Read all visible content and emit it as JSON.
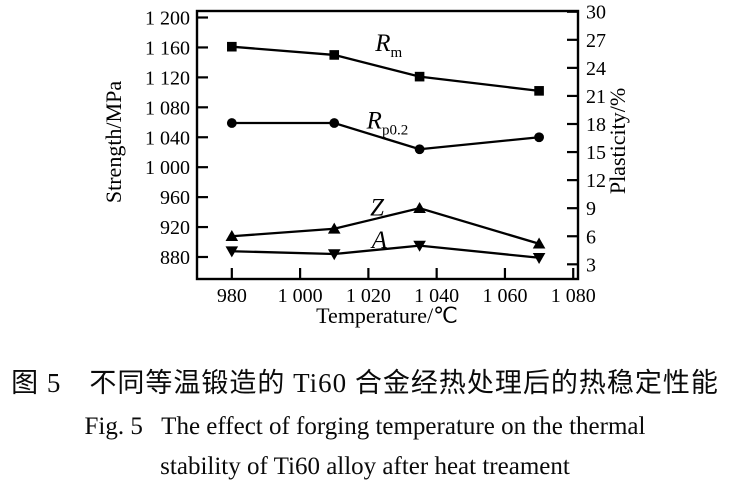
{
  "figure": {
    "caption_zh": "图 5　不同等温锻造的 Ti60 合金经热处理后的热稳定性能",
    "caption_en_line1": "Fig. 5   The effect of forging temperature on the thermal",
    "caption_en_line2": "stability of Ti60 alloy after heat treament"
  },
  "chart_data": {
    "type": "line",
    "title": "",
    "xlabel": "Temperature/℃",
    "ylabel_left": "Strength/MPa",
    "ylabel_right": "Plasticity/%",
    "x": [
      980,
      1010,
      1035,
      1070
    ],
    "series": [
      {
        "name": "Rm",
        "label_main": "R",
        "label_sub": "m",
        "axis": "left",
        "marker": "square",
        "values": [
          1161,
          1150,
          1121,
          1102
        ],
        "label_at": [
          1022,
          1155
        ]
      },
      {
        "name": "Rp0.2",
        "label_main": "R",
        "label_sub": "p0.2",
        "axis": "left",
        "marker": "circle",
        "values": [
          1059,
          1059,
          1024,
          1040
        ],
        "label_at": [
          1019.5,
          1052
        ]
      },
      {
        "name": "Z",
        "label_main": "Z",
        "label_sub": "",
        "axis": "right",
        "marker": "triangle-up",
        "values": [
          6.0,
          6.8,
          9.0,
          5.2
        ],
        "label_at": [
          1020.5,
          8.2
        ]
      },
      {
        "name": "A",
        "label_main": "A",
        "label_sub": "",
        "axis": "right",
        "marker": "triangle-down",
        "values": [
          4.4,
          4.1,
          5.0,
          3.7
        ],
        "label_at": [
          1021,
          4.72
        ]
      }
    ],
    "x_ticks": {
      "values": [
        980,
        1000,
        1020,
        1040,
        1060,
        1080
      ],
      "labels": [
        "980",
        "1 000",
        "1 020",
        "1 040",
        "1 060",
        "1 080"
      ]
    },
    "left_ticks": {
      "values": [
        1200,
        1160,
        1120,
        1080,
        1040,
        1000,
        960,
        920,
        880
      ],
      "labels": [
        "1 200",
        "1 160",
        "1 120",
        "1 080",
        "1 040",
        "1 000",
        "960",
        "920",
        "880"
      ]
    },
    "right_ticks": {
      "values": [
        30,
        27,
        24,
        21,
        18,
        15,
        12,
        9,
        6,
        3
      ],
      "labels": [
        "30",
        "27",
        "24",
        "21",
        "18",
        "15",
        "12",
        "9",
        "6",
        "3"
      ]
    },
    "xlim": [
      969.8,
      1081.4
    ],
    "ylim_left": [
      850.6,
      1208.7
    ],
    "ylim_right": [
      1.43,
      30.08
    ],
    "grid": "off",
    "legend_position": "inline-labels",
    "color": "#000000",
    "background": "#ffffff"
  }
}
